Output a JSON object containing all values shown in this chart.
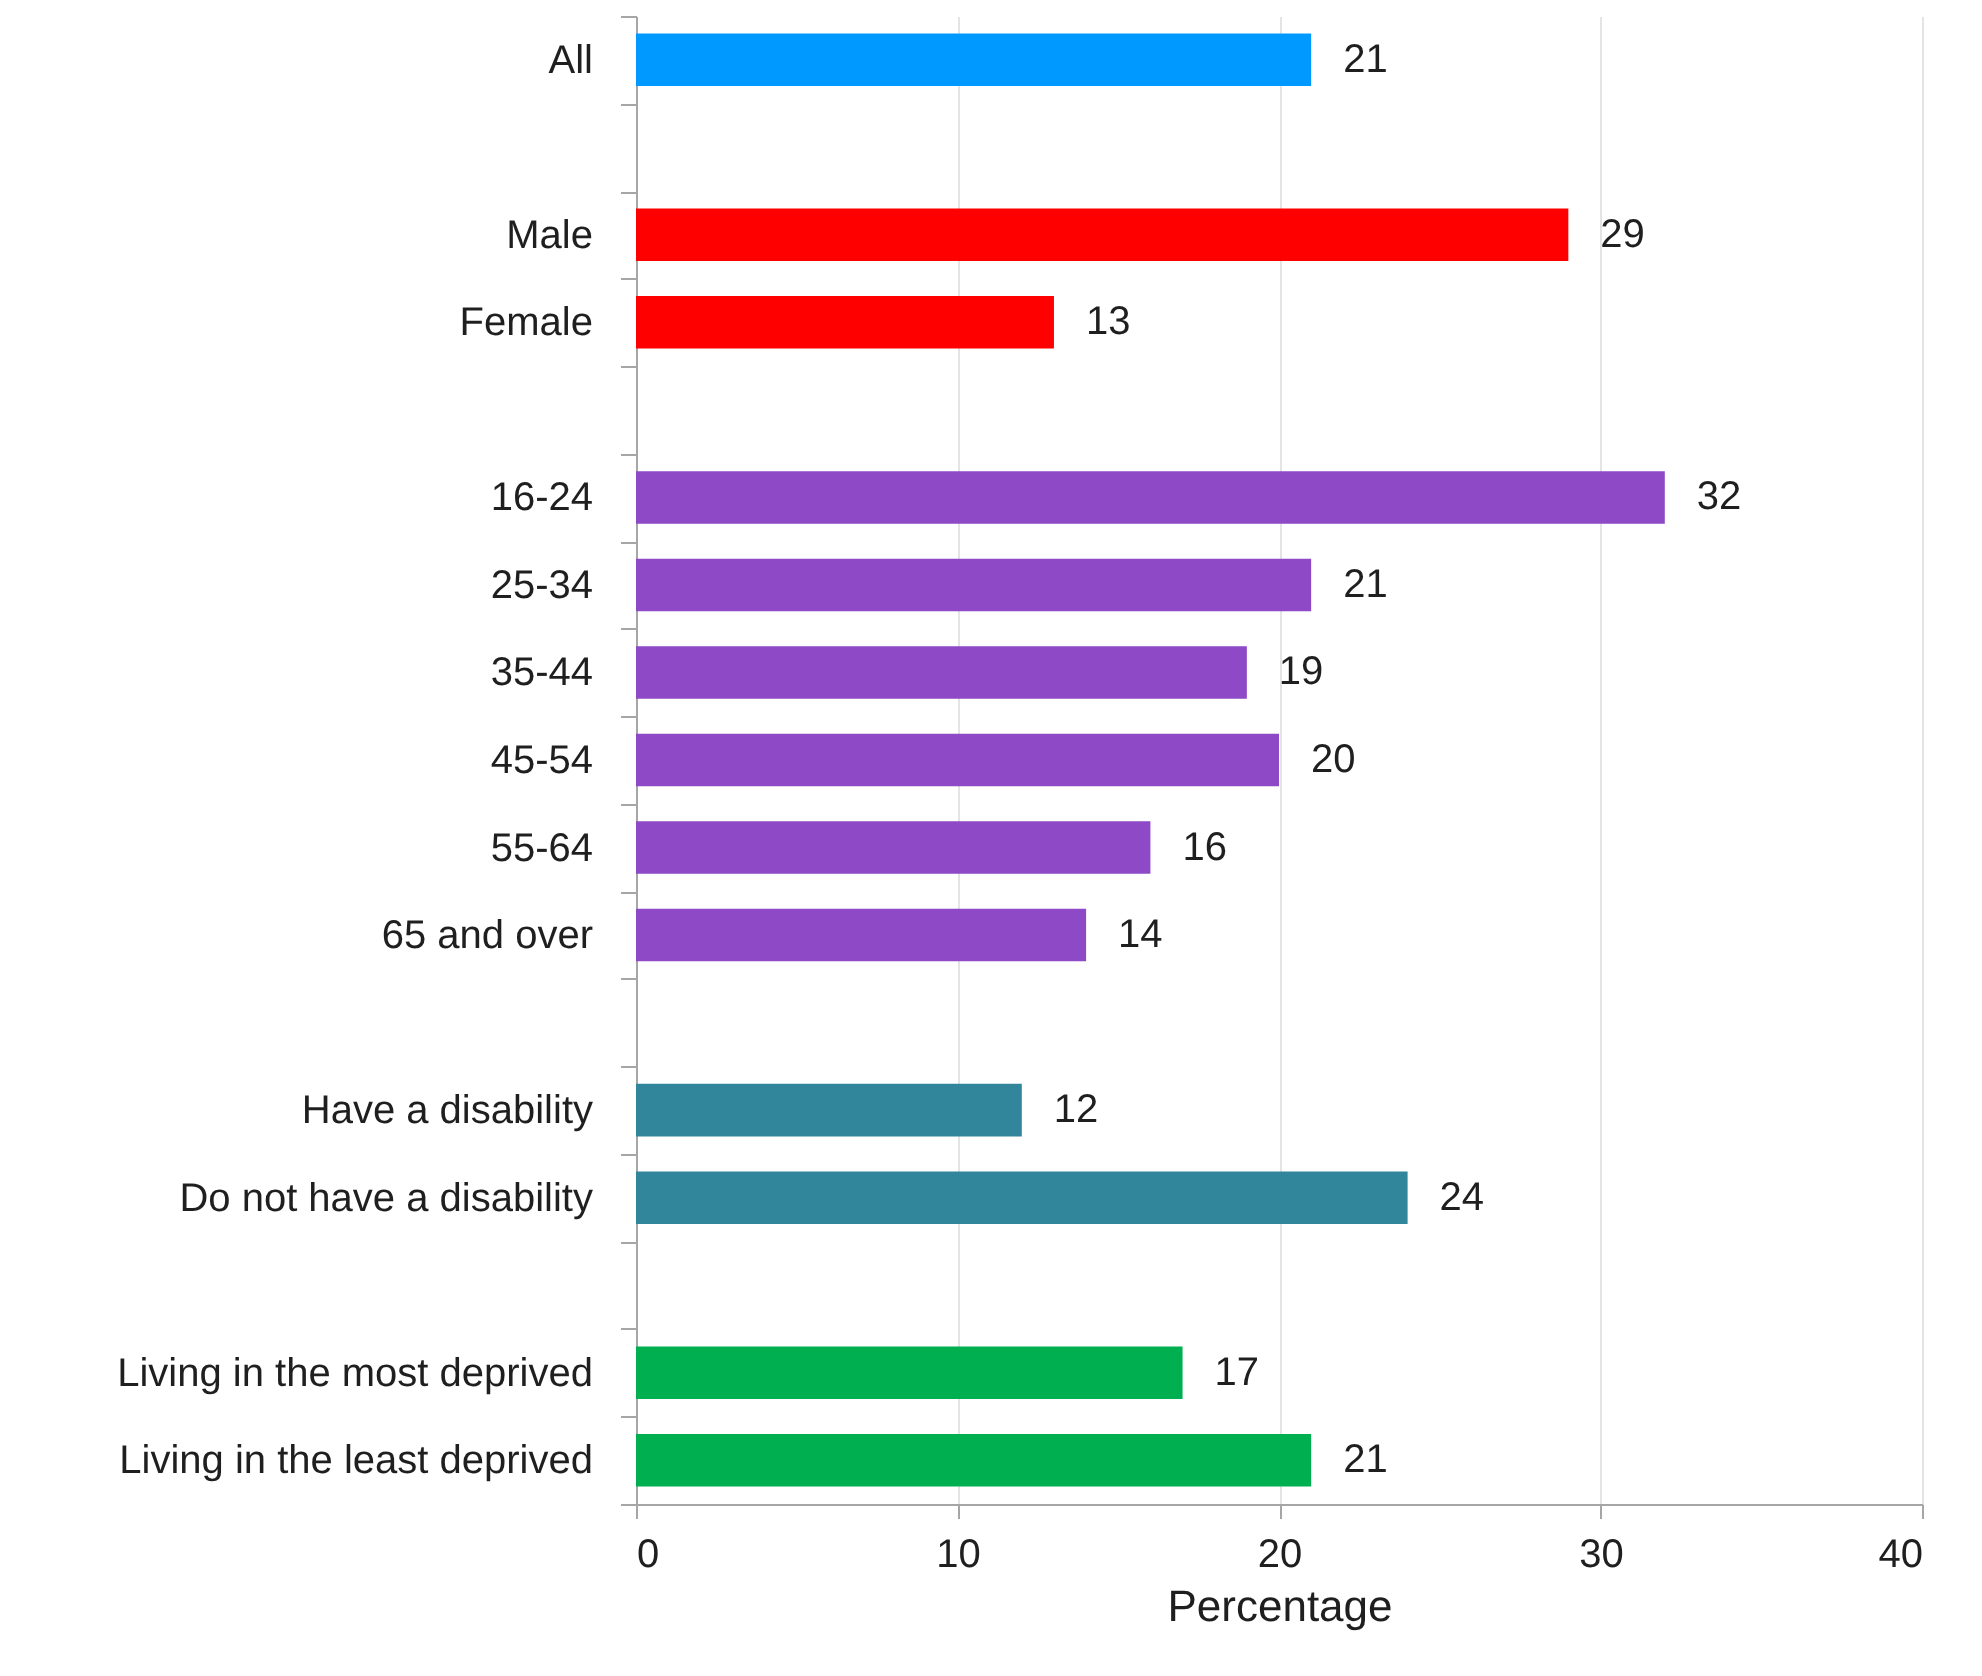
{
  "chart_data": {
    "type": "bar",
    "orientation": "horizontal",
    "categories": [
      "All",
      null,
      "Male",
      "Female",
      null,
      "16-24",
      "25-34",
      "35-44",
      "45-54",
      "55-64",
      "65 and over",
      null,
      "Have a disability",
      "Do not have a disability",
      null,
      "Living in the most deprived",
      "Living in the least deprived"
    ],
    "values": [
      21,
      null,
      29,
      13,
      null,
      32,
      21,
      19,
      20,
      16,
      14,
      null,
      12,
      24,
      null,
      17,
      21
    ],
    "colors": [
      "#0099ff",
      null,
      "#ff0000",
      "#ff0000",
      null,
      "#8e49c6",
      "#8e49c6",
      "#8e49c6",
      "#8e49c6",
      "#8e49c6",
      "#8e49c6",
      null,
      "#31869b",
      "#31869b",
      null,
      "#00b050",
      "#00b050"
    ],
    "xlim": [
      0,
      40
    ],
    "xticks": [
      0,
      10,
      20,
      30,
      40
    ],
    "xlabel": "Percentage",
    "grid": "x",
    "data_labels": true
  }
}
